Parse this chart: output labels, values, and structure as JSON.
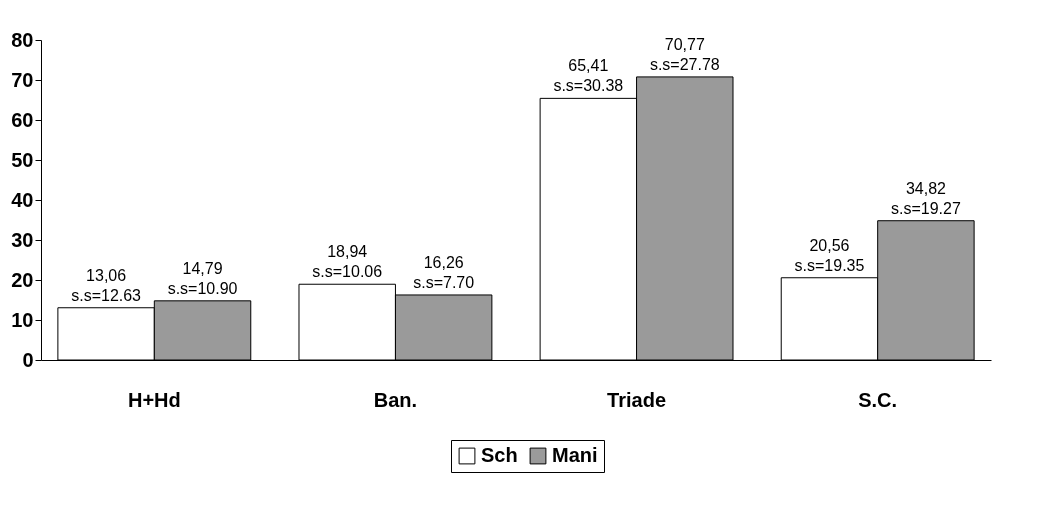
{
  "chart_data": {
    "type": "bar",
    "categories": [
      "H+Hd",
      "Ban.",
      "Triade",
      "S.C."
    ],
    "series": [
      {
        "name": "Sch",
        "color": "#ffffff",
        "values": [
          13.06,
          18.94,
          65.41,
          20.56
        ],
        "value_labels": [
          "13,06\ns.s=12.63",
          "18,94\ns.s=10.06",
          "65,41\ns.s=30.38",
          "20,56\ns.s=19.35"
        ]
      },
      {
        "name": "Mani",
        "color": "#9a9a9a",
        "values": [
          14.79,
          16.26,
          70.77,
          34.82
        ],
        "value_labels": [
          "14,79\ns.s=10.90",
          "16,26\ns.s=7.70",
          "70,77\ns.s=27.78",
          "34,82\ns.s=19.27"
        ]
      }
    ],
    "ylim": [
      0,
      80
    ],
    "yticks": [
      0,
      10,
      20,
      30,
      40,
      50,
      60,
      70,
      80
    ],
    "grid": false,
    "legend": "bottom"
  }
}
